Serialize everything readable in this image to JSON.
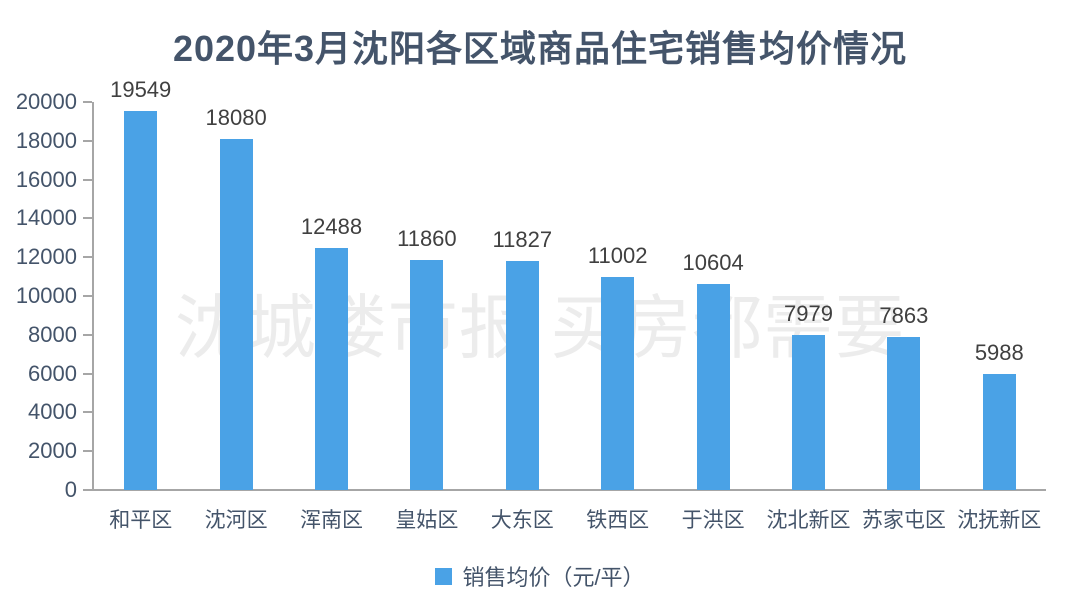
{
  "page": {
    "watermark": "沈城楼市报 买房都需要"
  },
  "legend": {
    "label": "销售均价（元/平）"
  },
  "chart_data": {
    "type": "bar",
    "title": "2020年3月沈阳各区域商品住宅销售均价情况",
    "categories": [
      "和平区",
      "沈河区",
      "浑南区",
      "皇姑区",
      "大东区",
      "铁西区",
      "于洪区",
      "沈北新区",
      "苏家屯区",
      "沈抚新区"
    ],
    "values": [
      19549,
      18080,
      12488,
      11860,
      11827,
      11002,
      10604,
      7979,
      7863,
      5988
    ],
    "series_name": "销售均价（元/平）",
    "xlabel": "",
    "ylabel": "",
    "ylim": [
      0,
      20000
    ],
    "ytick_step": 2000,
    "ytick_labels": [
      "0",
      "2000",
      "4000",
      "6000",
      "8000",
      "10000",
      "12000",
      "14000",
      "16000",
      "18000",
      "20000"
    ],
    "grid": false,
    "data_labels": true,
    "legend_position": "bottom",
    "colors": {
      "bar": "#4aa2e6",
      "title": "#44546a",
      "axis_label": "#44546a",
      "data_label": "#404040",
      "axis_line": "#a6a6a6",
      "watermark": "#ececec",
      "background": "#ffffff"
    }
  }
}
